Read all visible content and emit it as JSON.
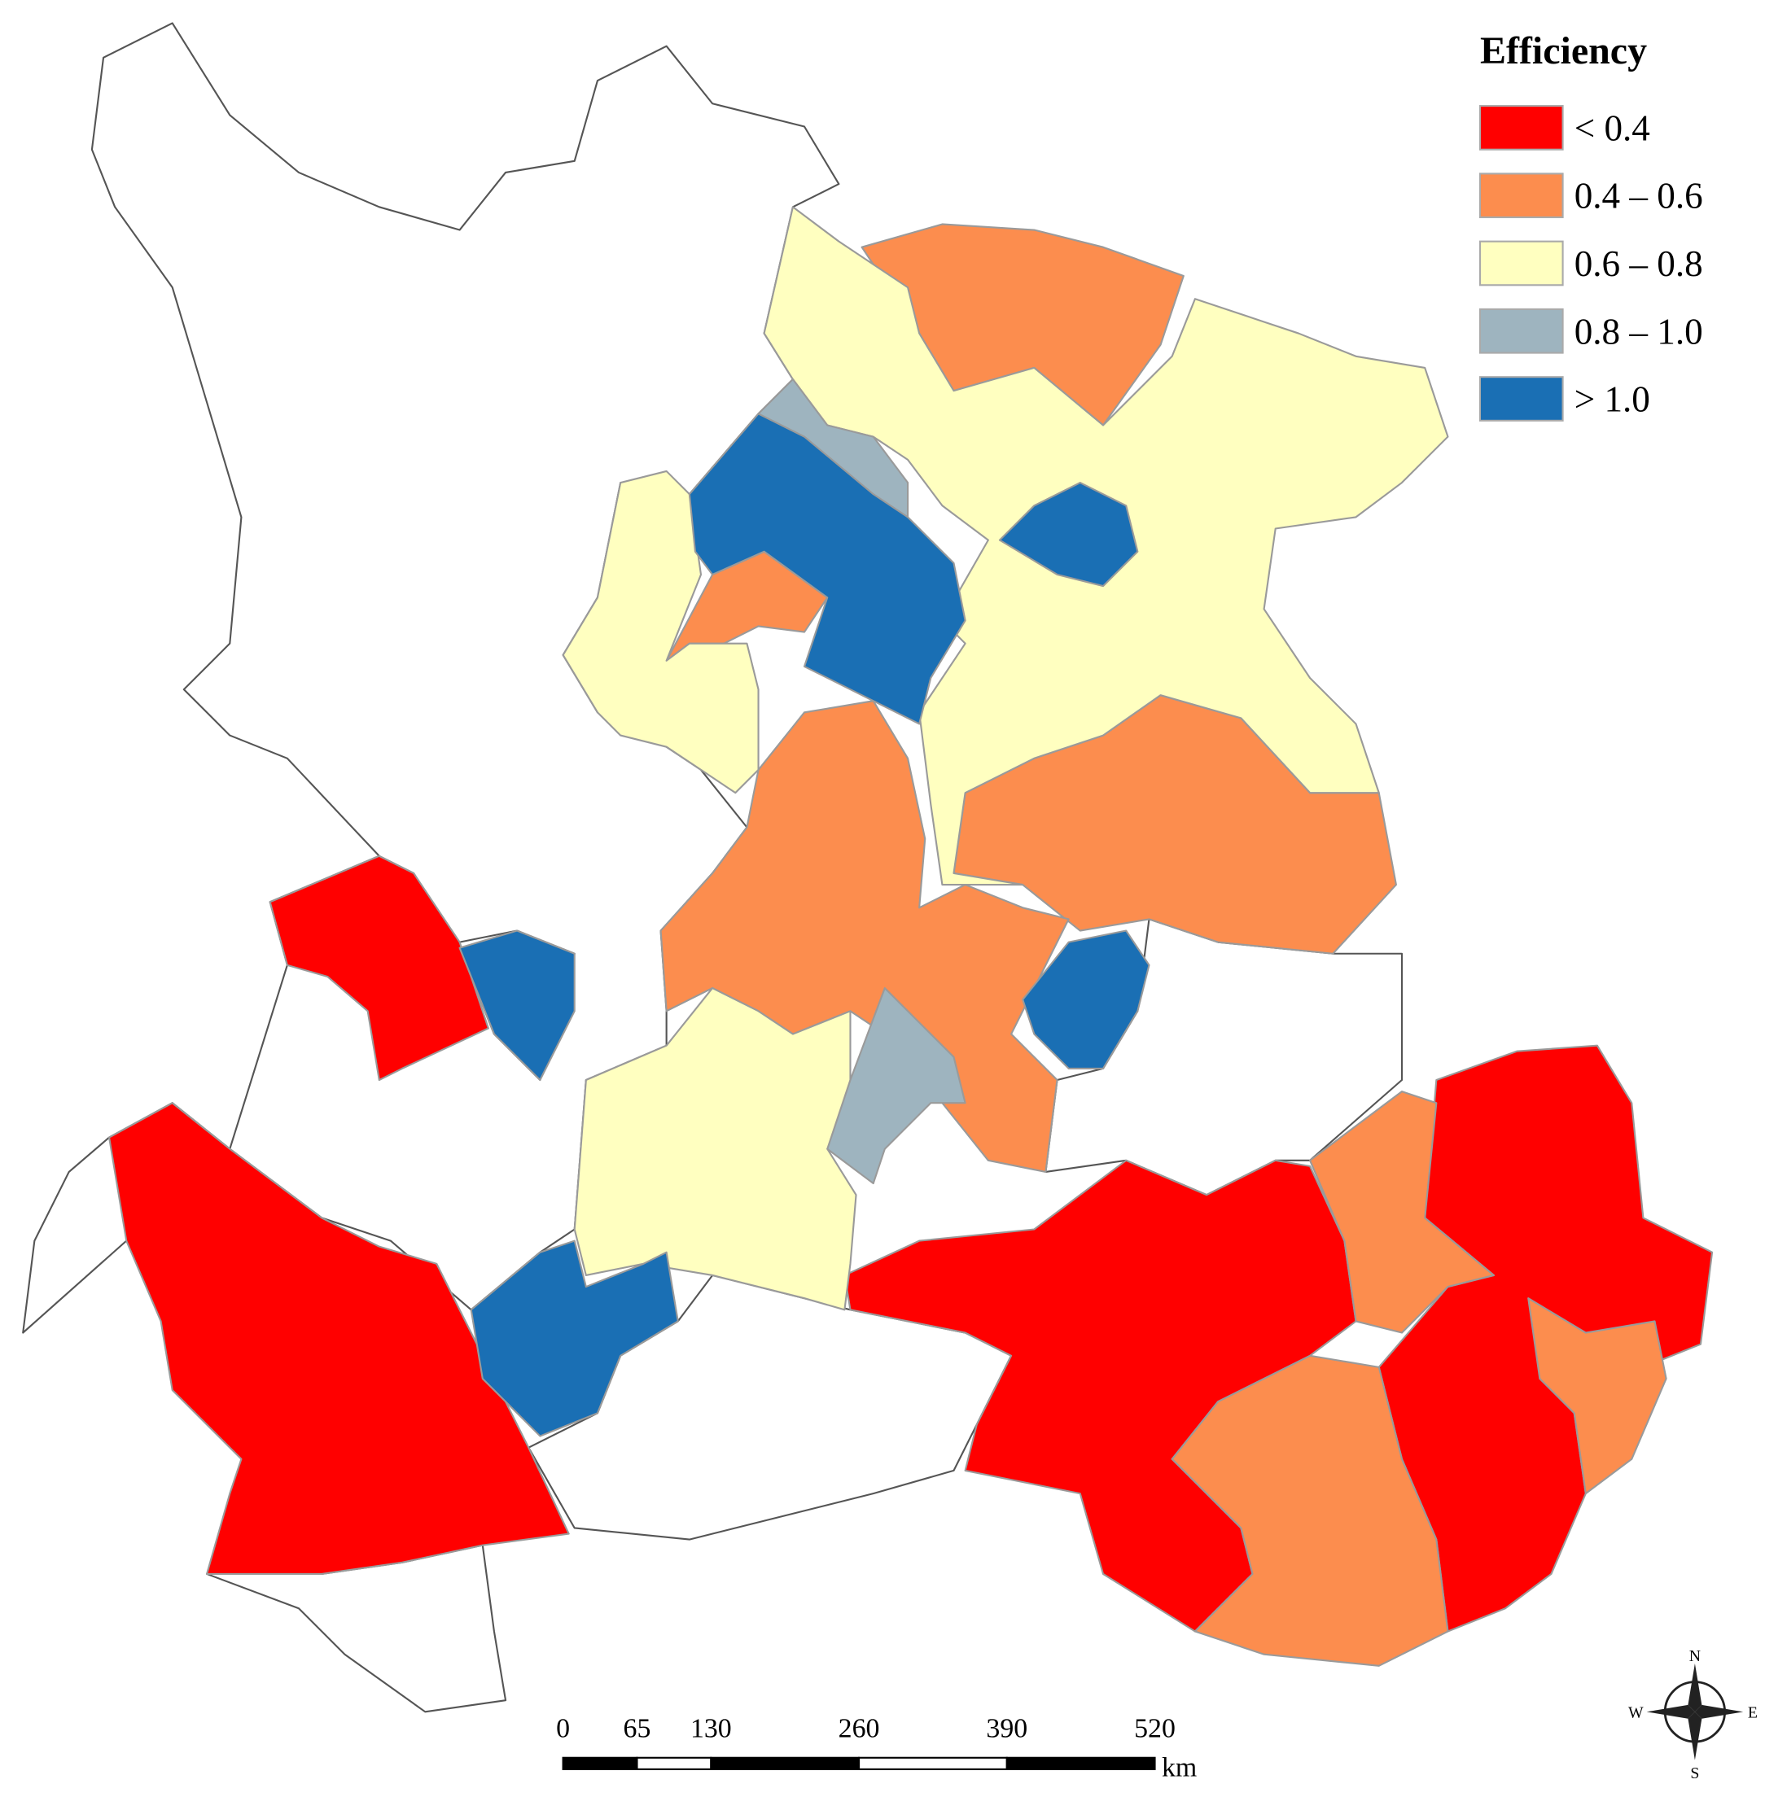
{
  "legend": {
    "title": "Efficiency",
    "items": [
      {
        "label": "< 0.4",
        "color": "#ff0000"
      },
      {
        "label": "0.4 – 0.6",
        "color": "#fc8d4e"
      },
      {
        "label": "0.6 – 0.8",
        "color": "#ffffc0"
      },
      {
        "label": "0.8 – 1.0",
        "color": "#9eb4bf"
      },
      {
        "label": "> 1.0",
        "color": "#1a6fb4"
      }
    ]
  },
  "scale_bar": {
    "ticks": [
      0,
      65,
      130,
      260,
      390,
      520
    ],
    "unit": "km"
  },
  "compass": {
    "north": "N",
    "south": "S",
    "east": "E",
    "west": "W"
  }
}
